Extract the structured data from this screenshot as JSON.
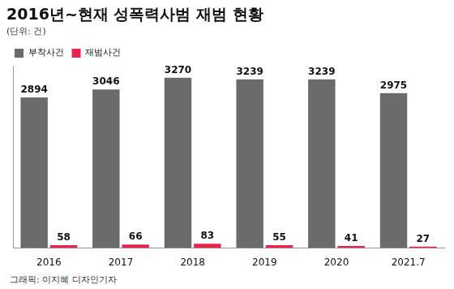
{
  "chart_data": {
    "type": "bar",
    "title": "2016년~현재 성폭력사범 재범 현황",
    "subtitle": "(단위: 건)",
    "annotations": [
      "그래픽: 이지혜 디자인기자"
    ],
    "categories": [
      "2016",
      "2017",
      "2018",
      "2019",
      "2020",
      "2021.7"
    ],
    "series": [
      {
        "name": "부착사건",
        "color": "#6b6b6b",
        "values": [
          2894,
          3046,
          3270,
          3239,
          3239,
          2975
        ]
      },
      {
        "name": "재범사건",
        "color": "#e8254d",
        "values": [
          58,
          66,
          83,
          55,
          41,
          27
        ]
      }
    ],
    "ylim": [
      0,
      3500
    ],
    "grid": false,
    "legend": "top-left",
    "data_labels": true,
    "tick_labels": "x"
  }
}
